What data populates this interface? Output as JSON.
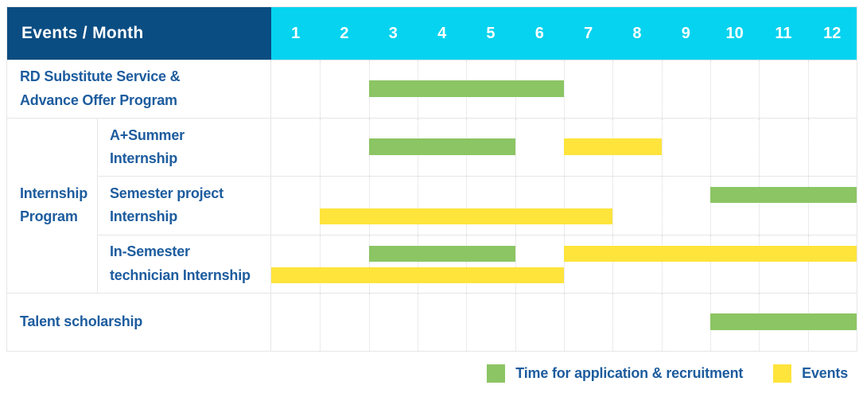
{
  "header": {
    "label": "Events / Month",
    "months": [
      "1",
      "2",
      "3",
      "4",
      "5",
      "6",
      "7",
      "8",
      "9",
      "10",
      "11",
      "12"
    ]
  },
  "colors": {
    "header_bg": "#0a4d82",
    "months_bg": "#06d3ef",
    "label_text": "#1d5c9e",
    "grid_line": "#e6e6e6",
    "recruitment_green": "#8cc564",
    "events_yellow": "#ffe43c"
  },
  "chart_data": {
    "type": "gantt",
    "x_axis": {
      "label": "Month",
      "range": [
        1,
        12
      ],
      "ticks": [
        "1",
        "2",
        "3",
        "4",
        "5",
        "6",
        "7",
        "8",
        "9",
        "10",
        "11",
        "12"
      ]
    },
    "group_label": "Internship\nProgram",
    "series": {
      "recruitment": {
        "label": "Time for application & recruitment",
        "color": "#8cc564"
      },
      "events": {
        "label": "Events",
        "color": "#ffe43c"
      }
    },
    "rows": [
      {
        "id": "rd",
        "label": "RD Substitute Service &\nAdvance Offer Program",
        "bars": [
          {
            "series": "recruitment",
            "start_month": 3,
            "end_month": 6,
            "lane": "mid"
          }
        ]
      },
      {
        "id": "summer",
        "group": "Internship Program",
        "label": "A+Summer\nInternship",
        "bars": [
          {
            "series": "recruitment",
            "start_month": 3,
            "end_month": 5,
            "lane": "mid"
          },
          {
            "series": "events",
            "start_month": 7,
            "end_month": 8,
            "lane": "mid"
          }
        ]
      },
      {
        "id": "semester",
        "group": "Internship Program",
        "label": "Semester project\nInternship",
        "bars": [
          {
            "series": "recruitment",
            "start_month": 10,
            "end_month": 12,
            "lane": "top"
          },
          {
            "series": "events",
            "start_month": 2,
            "end_month": 7,
            "lane": "bottom"
          }
        ]
      },
      {
        "id": "insemester",
        "group": "Internship Program",
        "label": "In-Semester\ntechnician Internship",
        "bars": [
          {
            "series": "recruitment",
            "start_month": 3,
            "end_month": 5,
            "lane": "top"
          },
          {
            "series": "events",
            "start_month": 7,
            "end_month": 12,
            "lane": "top"
          },
          {
            "series": "events",
            "start_month": 1,
            "end_month": 6,
            "lane": "bottom"
          }
        ]
      },
      {
        "id": "talent",
        "label": "Talent scholarship",
        "bars": [
          {
            "series": "recruitment",
            "start_month": 10,
            "end_month": 12,
            "lane": "mid"
          }
        ]
      }
    ],
    "legend_position": "bottom-right"
  },
  "legend": {
    "items": [
      {
        "series": "recruitment",
        "label": "Time for application & recruitment"
      },
      {
        "series": "events",
        "label": "Events"
      }
    ]
  }
}
